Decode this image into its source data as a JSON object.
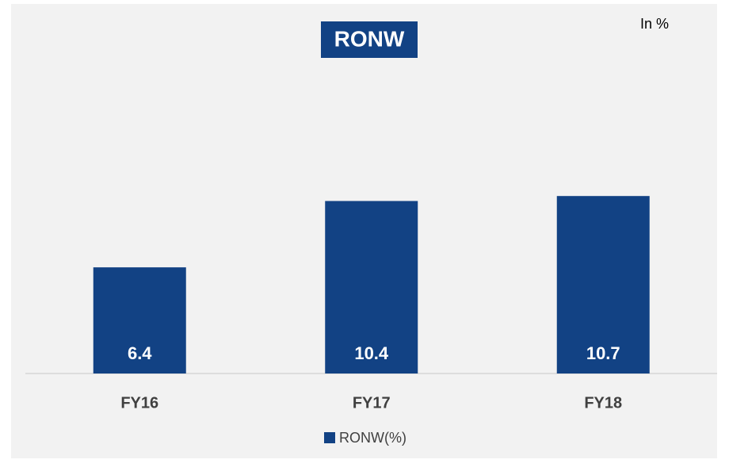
{
  "chart_data": {
    "type": "bar",
    "title": "RONW",
    "annotation": "In %",
    "categories": [
      "FY16",
      "FY17",
      "FY18"
    ],
    "series": [
      {
        "name": "RONW(%)",
        "color": "#124284",
        "values": [
          6.4,
          10.4,
          10.7
        ]
      }
    ],
    "ylim": [
      0,
      12
    ],
    "grid": false,
    "legend": "bottom"
  }
}
